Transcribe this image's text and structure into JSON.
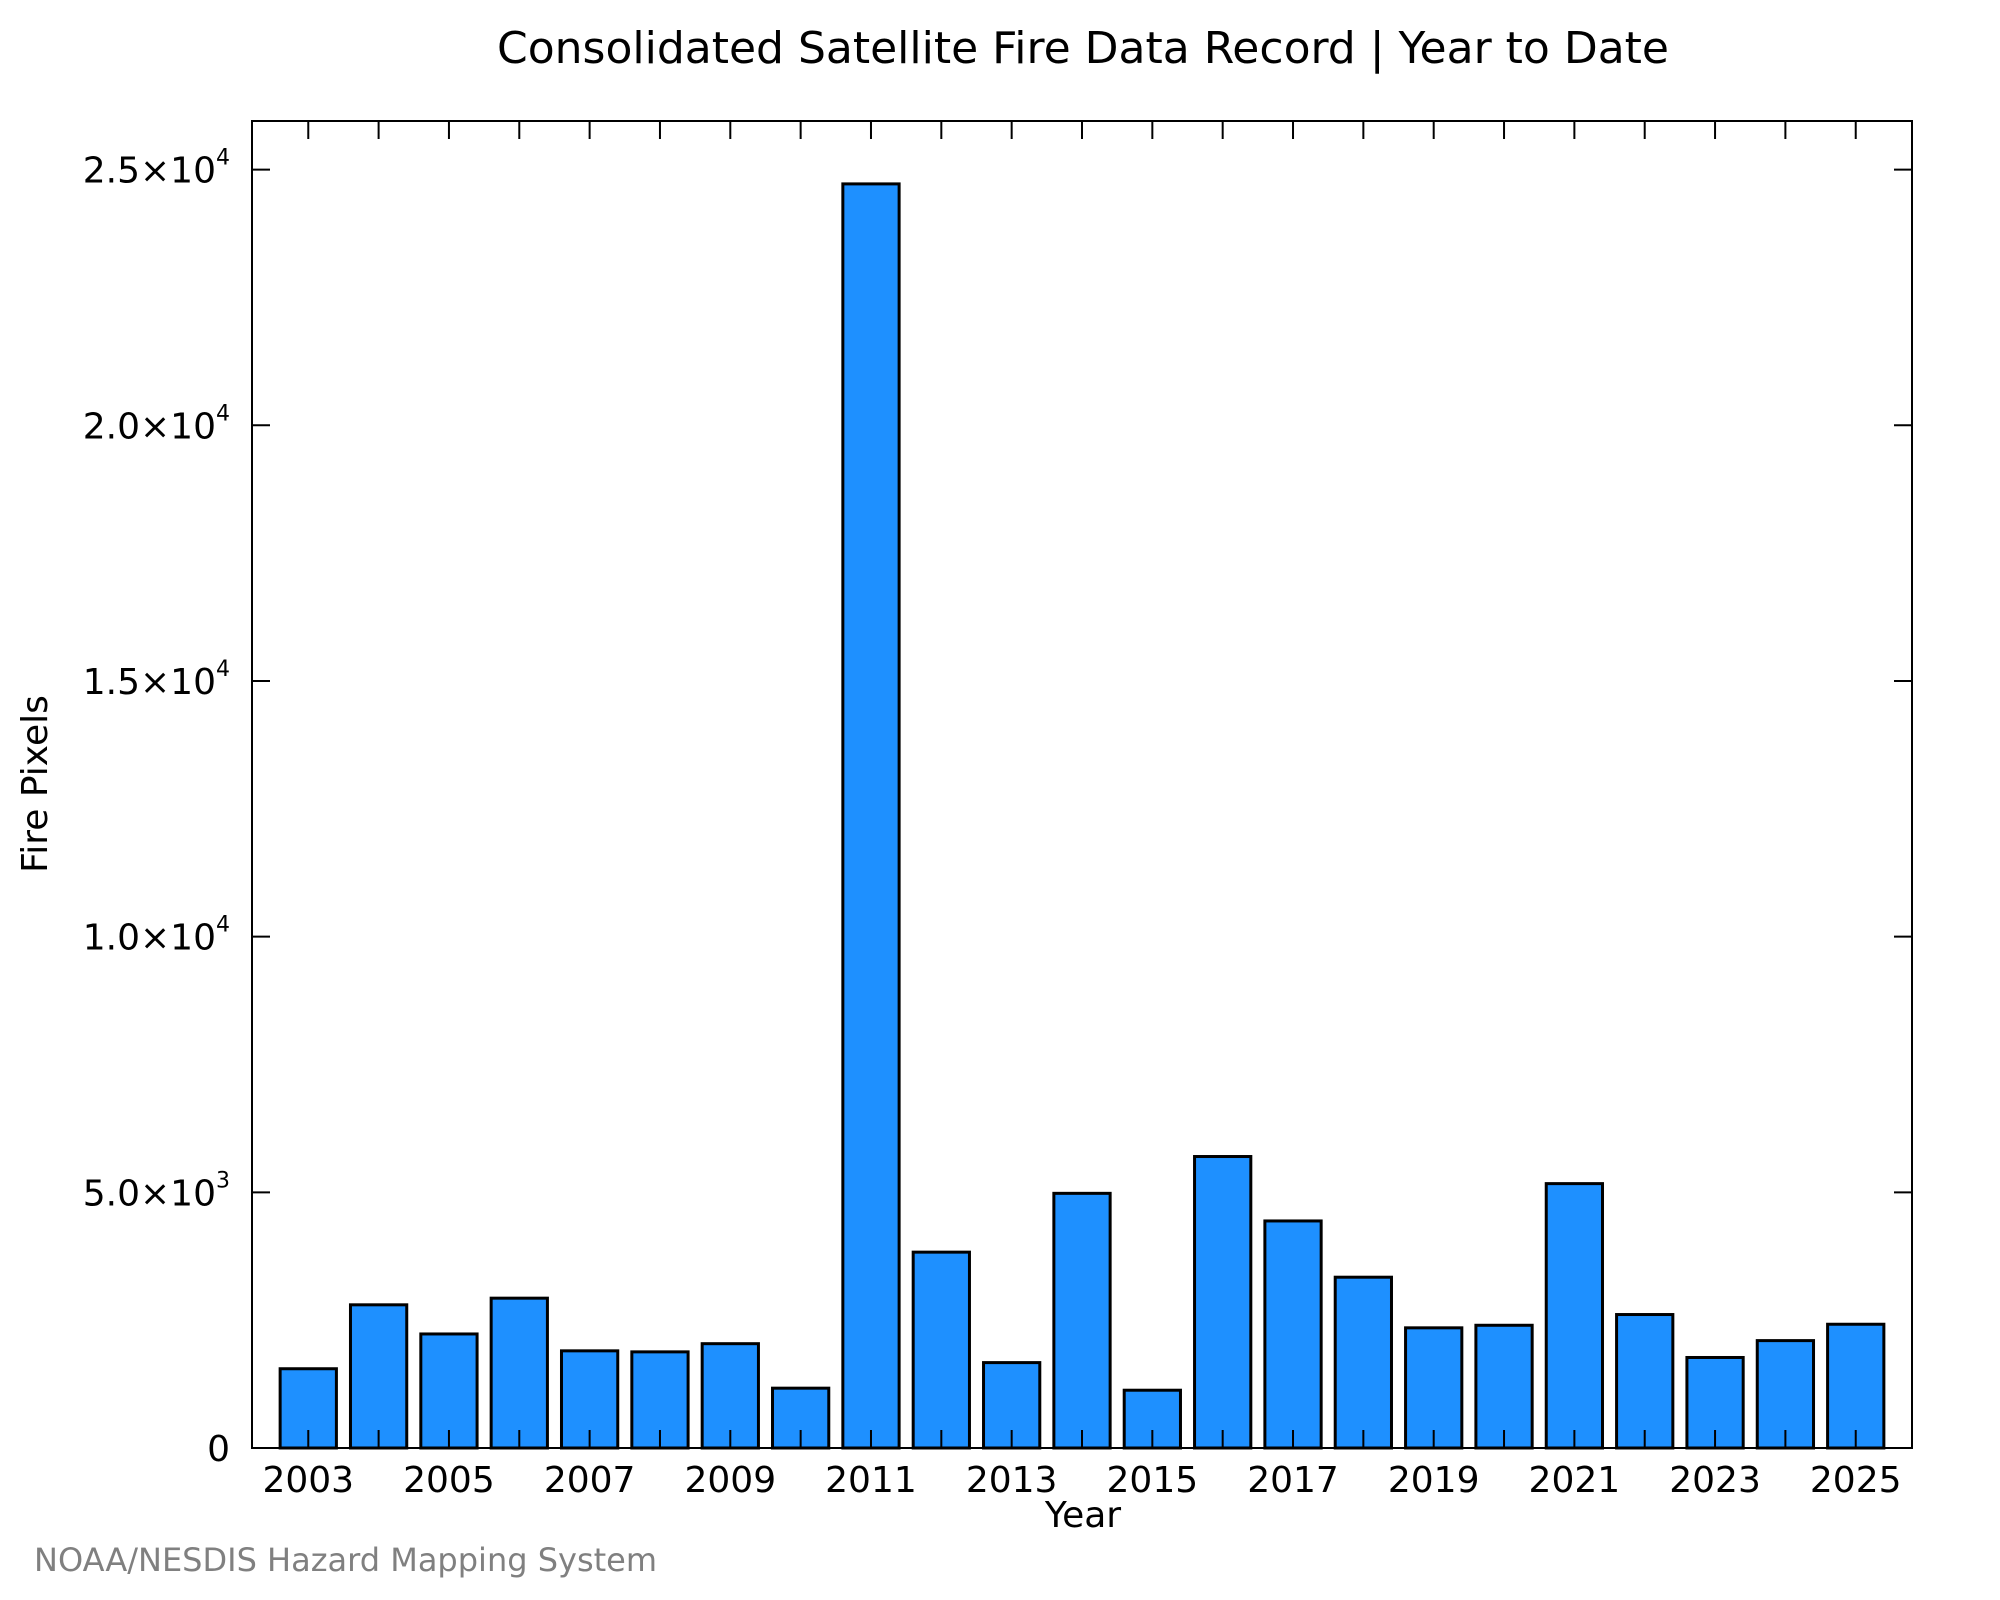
{
  "chart_data": {
    "type": "bar",
    "title": "Consolidated Satellite Fire Data Record | Year to Date",
    "xlabel": "Year",
    "ylabel": "Fire Pixels",
    "categories": [
      "2003",
      "2004",
      "2005",
      "2006",
      "2007",
      "2008",
      "2009",
      "2010",
      "2011",
      "2012",
      "2013",
      "2014",
      "2015",
      "2016",
      "2017",
      "2018",
      "2019",
      "2020",
      "2021",
      "2022",
      "2023",
      "2024",
      "2025"
    ],
    "values": [
      1550,
      2800,
      2230,
      2930,
      1900,
      1880,
      2040,
      1170,
      24720,
      3830,
      1670,
      4980,
      1130,
      5700,
      4440,
      3340,
      2350,
      2400,
      5170,
      2610,
      1770,
      2100,
      2420
    ],
    "x_tick_labels": [
      "2003",
      "2005",
      "2007",
      "2009",
      "2011",
      "2013",
      "2015",
      "2017",
      "2019",
      "2021",
      "2023",
      "2025"
    ],
    "y_ticks": [
      {
        "value": 0,
        "mantissa": "0",
        "exponent": ""
      },
      {
        "value": 5000,
        "mantissa": "5.0×10",
        "exponent": "3"
      },
      {
        "value": 10000,
        "mantissa": "1.0×10",
        "exponent": "4"
      },
      {
        "value": 15000,
        "mantissa": "1.5×10",
        "exponent": "4"
      },
      {
        "value": 20000,
        "mantissa": "2.0×10",
        "exponent": "4"
      },
      {
        "value": 25000,
        "mantissa": "2.5×10",
        "exponent": "4"
      }
    ],
    "xlim": [
      2002.2,
      2025.8
    ],
    "ylim": [
      0,
      25950
    ],
    "grid": false,
    "bar_color": "#1E90FF"
  },
  "credit": "NOAA/NESDIS Hazard Mapping System"
}
